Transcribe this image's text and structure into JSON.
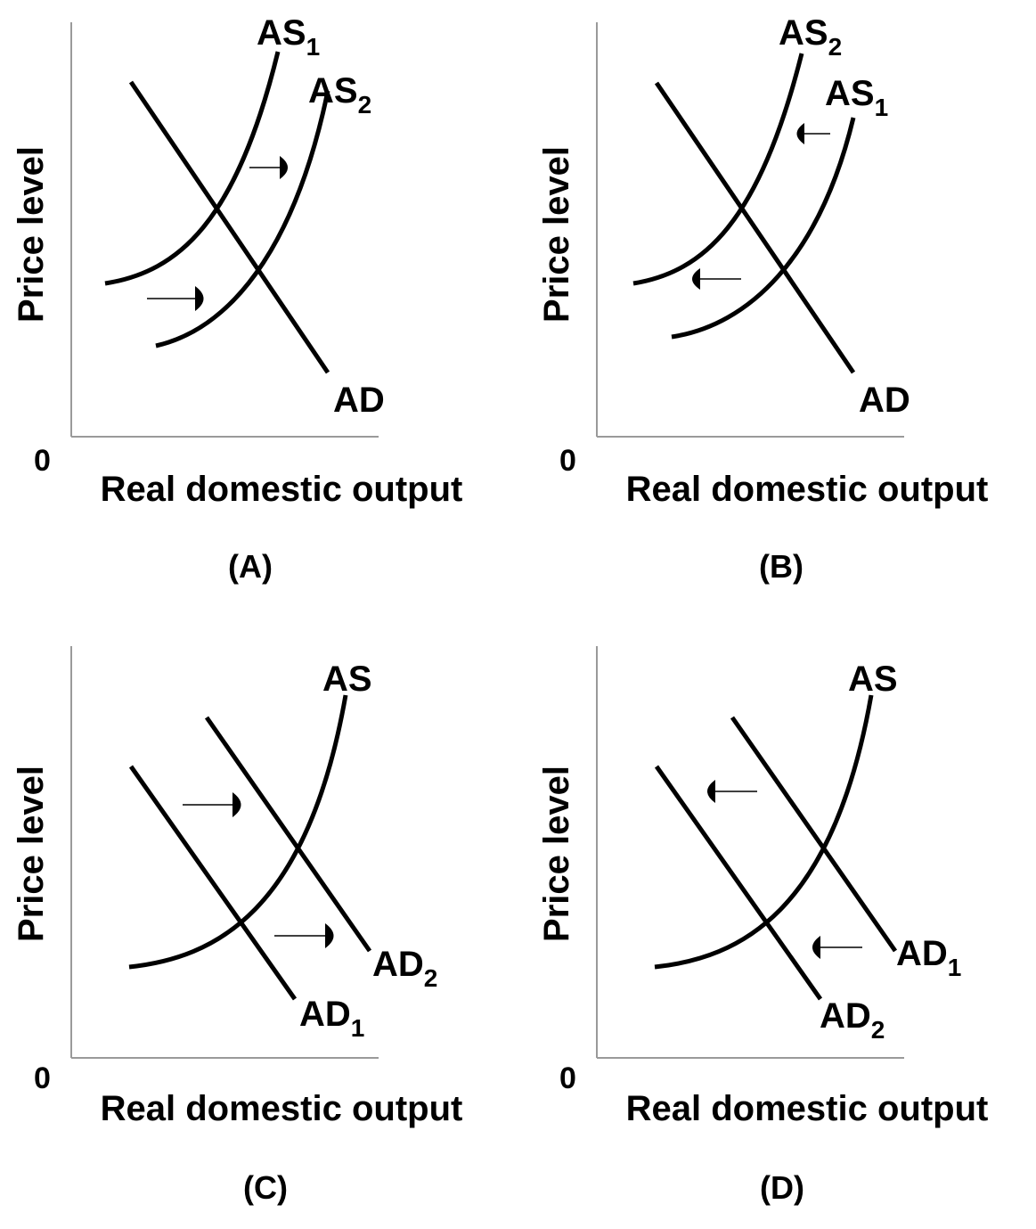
{
  "axes": {
    "y_label": "Price level",
    "x_label": "Real domestic output",
    "origin": "0"
  },
  "panels": [
    {
      "caption": "(A)",
      "labels": [
        {
          "base": "AS",
          "sub": "1"
        },
        {
          "base": "AS",
          "sub": "2"
        },
        {
          "base": "AD",
          "sub": ""
        }
      ]
    },
    {
      "caption": "(B)",
      "labels": [
        {
          "base": "AS",
          "sub": "2"
        },
        {
          "base": "AS",
          "sub": "1"
        },
        {
          "base": "AD",
          "sub": ""
        }
      ]
    },
    {
      "caption": "(C)",
      "labels": [
        {
          "base": "AS",
          "sub": ""
        },
        {
          "base": "AD",
          "sub": "2"
        },
        {
          "base": "AD",
          "sub": "1"
        }
      ]
    },
    {
      "caption": "(D)",
      "labels": [
        {
          "base": "AS",
          "sub": ""
        },
        {
          "base": "AD",
          "sub": "1"
        },
        {
          "base": "AD",
          "sub": "2"
        }
      ]
    }
  ]
}
